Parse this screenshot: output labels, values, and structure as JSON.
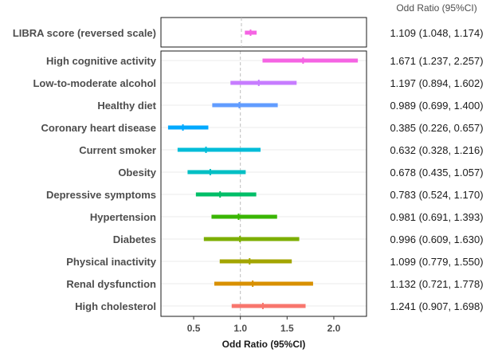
{
  "chart_data": {
    "type": "forest",
    "xlabel": "Odd Ratio (95%CI)",
    "column_header": "Odd Ratio (95%CI)",
    "reference_line": 1.0,
    "xlim": [
      0.15,
      2.35
    ],
    "xticks": [
      0.5,
      1.0,
      1.5,
      2.0
    ],
    "xtick_labels": [
      "0.5",
      "1.0",
      "1.5",
      "2.0"
    ],
    "summary": {
      "label": "LIBRA score (reversed scale)",
      "or": 1.109,
      "lower": 1.048,
      "upper": 1.174,
      "ci_text": "1.109 (1.048, 1.174)",
      "color": "#f564e3"
    },
    "rows": [
      {
        "label": "High cognitive activity",
        "or": 1.671,
        "lower": 1.237,
        "upper": 2.257,
        "ci_text": "1.671 (1.237, 2.257)",
        "color": "#f564e3"
      },
      {
        "label": "Low-to-moderate alcohol",
        "or": 1.197,
        "lower": 0.894,
        "upper": 1.602,
        "ci_text": "1.197 (0.894, 1.602)",
        "color": "#c77cff"
      },
      {
        "label": "Healthy diet",
        "or": 0.989,
        "lower": 0.699,
        "upper": 1.4,
        "ci_text": "0.989 (0.699, 1.400)",
        "color": "#619cff"
      },
      {
        "label": "Coronary heart disease",
        "or": 0.385,
        "lower": 0.226,
        "upper": 0.657,
        "ci_text": "0.385 (0.226, 0.657)",
        "color": "#00a9ff"
      },
      {
        "label": "Current smoker",
        "or": 0.632,
        "lower": 0.328,
        "upper": 1.216,
        "ci_text": "0.632 (0.328, 1.216)",
        "color": "#00bcd8"
      },
      {
        "label": "Obesity",
        "or": 0.678,
        "lower": 0.435,
        "upper": 1.057,
        "ci_text": "0.678 (0.435, 1.057)",
        "color": "#00bfc4"
      },
      {
        "label": "Depressive symptoms",
        "or": 0.783,
        "lower": 0.524,
        "upper": 1.17,
        "ci_text": "0.783 (0.524, 1.170)",
        "color": "#00be67"
      },
      {
        "label": "Hypertension",
        "or": 0.981,
        "lower": 0.691,
        "upper": 1.393,
        "ci_text": "0.981 (0.691, 1.393)",
        "color": "#39b600"
      },
      {
        "label": "Diabetes",
        "or": 0.996,
        "lower": 0.609,
        "upper": 1.63,
        "ci_text": "0.996 (0.609, 1.630)",
        "color": "#7cae00"
      },
      {
        "label": "Physical inactivity",
        "or": 1.099,
        "lower": 0.779,
        "upper": 1.55,
        "ci_text": "1.099 (0.779, 1.550)",
        "color": "#a3a500"
      },
      {
        "label": "Renal dysfunction",
        "or": 1.132,
        "lower": 0.721,
        "upper": 1.778,
        "ci_text": "1.132 (0.721, 1.778)",
        "color": "#d89000"
      },
      {
        "label": "High cholesterol",
        "or": 1.241,
        "lower": 0.907,
        "upper": 1.698,
        "ci_text": "1.241 (0.907, 1.698)",
        "color": "#f8766d"
      }
    ]
  }
}
